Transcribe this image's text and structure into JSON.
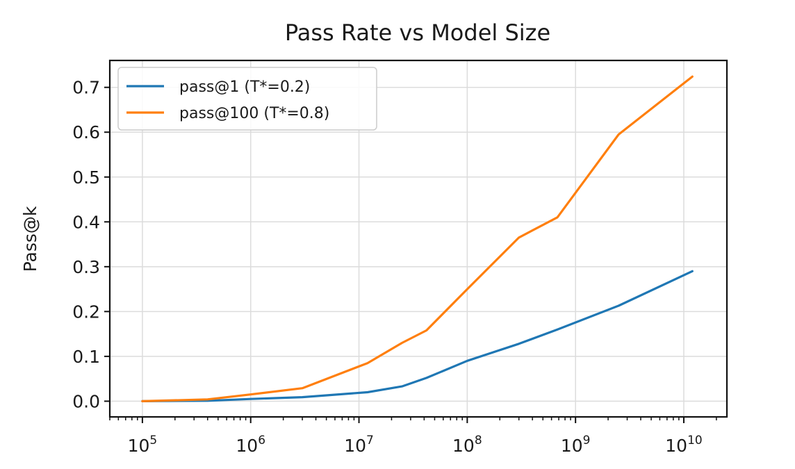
{
  "chart_data": {
    "type": "line",
    "title": "Pass Rate vs Model Size",
    "xlabel": "",
    "ylabel": "Pass@k",
    "x_scale": "log",
    "xlim": [
      50000,
      25000000000
    ],
    "ylim": [
      -0.035,
      0.76
    ],
    "x_tick_labels": [
      {
        "value": 100000,
        "base": "10",
        "exp": "5"
      },
      {
        "value": 1000000,
        "base": "10",
        "exp": "6"
      },
      {
        "value": 10000000,
        "base": "10",
        "exp": "7"
      },
      {
        "value": 100000000,
        "base": "10",
        "exp": "8"
      },
      {
        "value": 1000000000,
        "base": "10",
        "exp": "9"
      },
      {
        "value": 10000000000,
        "base": "10",
        "exp": "10"
      }
    ],
    "y_ticks": [
      0.0,
      0.1,
      0.2,
      0.3,
      0.4,
      0.5,
      0.6,
      0.7
    ],
    "y_tick_labels": [
      "0.0",
      "0.1",
      "0.2",
      "0.3",
      "0.4",
      "0.5",
      "0.6",
      "0.7"
    ],
    "grid": true,
    "legend_position": "top-left",
    "series": [
      {
        "name": "pass@1 (T*=0.2)",
        "color": "#1f77b4",
        "x": [
          100000,
          400000,
          1000000,
          3000000,
          12000000,
          25000000,
          42000000,
          100000000,
          300000000,
          680000000,
          2500000000,
          12000000000
        ],
        "y": [
          0.0,
          0.001,
          0.005,
          0.009,
          0.02,
          0.033,
          0.052,
          0.09,
          0.128,
          0.16,
          0.213,
          0.29
        ]
      },
      {
        "name": "pass@100 (T*=0.8)",
        "color": "#ff7f0e",
        "x": [
          100000,
          400000,
          1000000,
          3000000,
          12000000,
          25000000,
          42000000,
          100000000,
          300000000,
          680000000,
          2500000000,
          12000000000
        ],
        "y": [
          0.0,
          0.004,
          0.015,
          0.029,
          0.085,
          0.13,
          0.158,
          0.25,
          0.365,
          0.41,
          0.595,
          0.724
        ]
      }
    ]
  }
}
